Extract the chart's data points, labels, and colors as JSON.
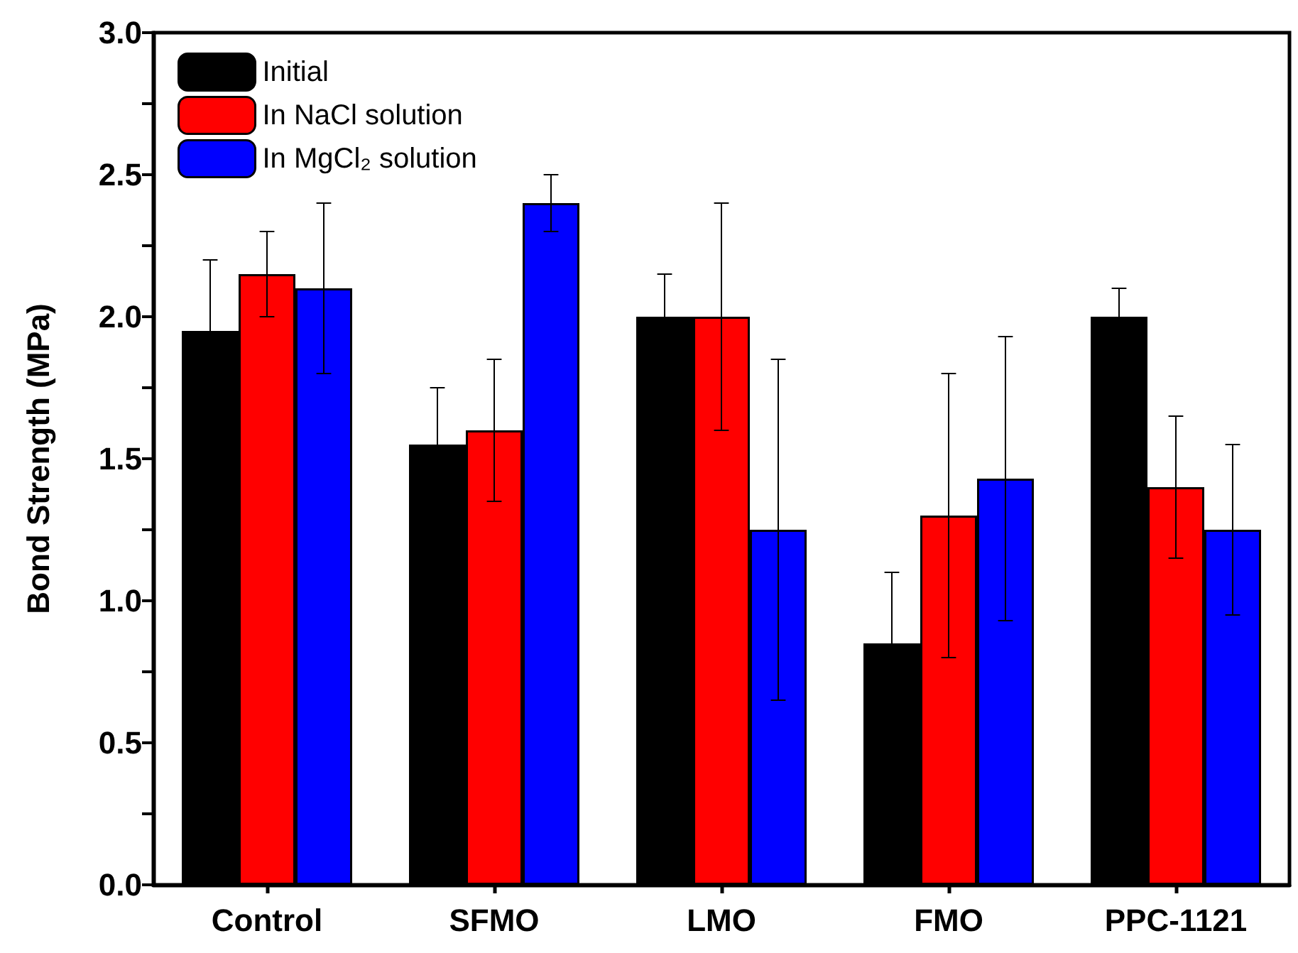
{
  "chart_data": {
    "type": "bar",
    "ylabel": "Bond Strength (MPa)",
    "categories": [
      "Control",
      "SFMO",
      "LMO",
      "FMO",
      "PPC-1121"
    ],
    "series": [
      {
        "name": "Initial",
        "color": "#000000",
        "values": [
          1.95,
          1.55,
          2.0,
          0.85,
          2.0
        ],
        "errors": [
          0.25,
          0.2,
          0.15,
          0.25,
          0.1
        ]
      },
      {
        "name": "In NaCl solution",
        "color": "#ff0000",
        "values": [
          2.15,
          1.6,
          2.0,
          1.3,
          1.4
        ],
        "errors": [
          0.15,
          0.25,
          0.4,
          0.5,
          0.25
        ]
      },
      {
        "name": "In MgCl₂ solution",
        "color": "#0000ff",
        "values": [
          2.1,
          2.4,
          1.25,
          1.43,
          1.25
        ],
        "errors": [
          0.3,
          0.1,
          0.6,
          0.5,
          0.3
        ]
      }
    ],
    "ylim": [
      0,
      3.0
    ],
    "yticks": [
      {
        "value": 0,
        "label": "0.0"
      },
      {
        "value": 0.25,
        "label": null
      },
      {
        "value": 0.5,
        "label": "0.5"
      },
      {
        "value": 0.75,
        "label": null
      },
      {
        "value": 1.0,
        "label": "1.0"
      },
      {
        "value": 1.25,
        "label": null
      },
      {
        "value": 1.5,
        "label": "1.5"
      },
      {
        "value": 1.75,
        "label": null
      },
      {
        "value": 2.0,
        "label": "2.0"
      },
      {
        "value": 2.25,
        "label": null
      },
      {
        "value": 2.5,
        "label": "2.5"
      },
      {
        "value": 2.75,
        "label": null
      },
      {
        "value": 3.0,
        "label": "3.0"
      }
    ],
    "legend": "top left",
    "grid": false
  }
}
